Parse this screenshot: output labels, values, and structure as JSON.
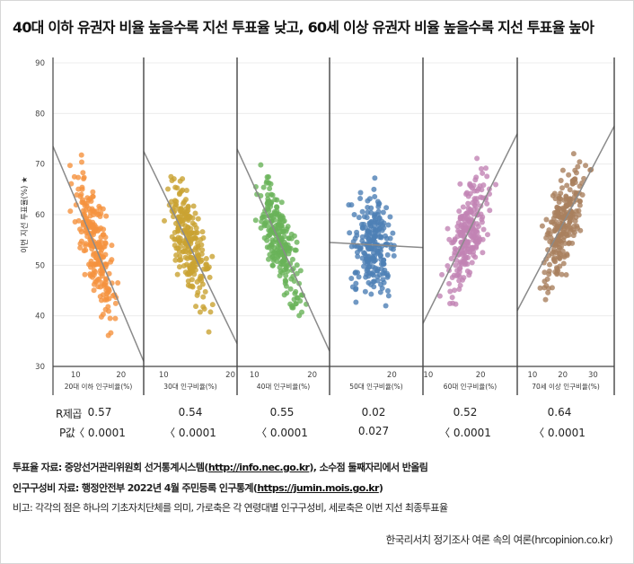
{
  "title": "40대 이하 유권자 비율 높을수록 지선 투표율 낮고, 60세 이상 유권자 비율 높을수록 지선 투표율 높아",
  "chart_data": {
    "type": "scatter",
    "ylabel": "이번 지선 투표율(%) ★",
    "ylim": [
      30,
      90
    ],
    "yticks": [
      30,
      40,
      50,
      60,
      70,
      80,
      90
    ],
    "panels": [
      {
        "xlabel": "20대 이하 인구비율(%)",
        "xlim": [
          5,
          25
        ],
        "xticks": [
          10,
          20
        ],
        "color": "#f5923e",
        "trend": [
          [
            5,
            73.5
          ],
          [
            25,
            31
          ]
        ],
        "r2": "0.57",
        "p": "〈 0.0001"
      },
      {
        "xlabel": "30대 인구비율(%)",
        "xlim": [
          7,
          21
        ],
        "xticks": [
          10,
          20
        ],
        "color": "#c9a232",
        "trend": [
          [
            7,
            72.5
          ],
          [
            21,
            34.5
          ]
        ],
        "r2": "0.54",
        "p": "〈 0.0001"
      },
      {
        "xlabel": "40대 인구비율(%)",
        "xlim": [
          7,
          23
        ],
        "xticks": [
          10,
          20
        ],
        "color": "#69b359",
        "trend": [
          [
            7,
            73
          ],
          [
            23,
            33
          ]
        ],
        "r2": "0.55",
        "p": "〈 0.0001"
      },
      {
        "xlabel": "50대 인구비율(%)",
        "xlim": [
          10,
          25
        ],
        "xticks": [
          20
        ],
        "color": "#4d7fb5",
        "trend": [
          [
            10,
            54.5
          ],
          [
            25,
            53.5
          ]
        ],
        "r2": "0.02",
        "p": "0.027"
      },
      {
        "xlabel": "60대 인구비율(%)",
        "xlim": [
          9,
          27
        ],
        "xticks": [
          10,
          20
        ],
        "color": "#c283b4",
        "trend": [
          [
            9,
            38.5
          ],
          [
            27,
            76
          ]
        ],
        "r2": "0.52",
        "p": "〈 0.0001"
      },
      {
        "xlabel": "70세 이상 인구비율(%)",
        "xlim": [
          5,
          37
        ],
        "xticks": [
          10,
          20,
          30
        ],
        "color": "#a97f5e",
        "trend": [
          [
            5,
            41
          ],
          [
            37,
            77.5
          ]
        ],
        "r2": "0.64",
        "p": "〈 0.0001"
      }
    ]
  },
  "stats": {
    "r2_label": "R제곱",
    "p_label": "P값"
  },
  "notes": {
    "vote_prefix": "투표율 자료: ",
    "vote_source": "중앙선거관리위원회 선거통계시스템(",
    "vote_link": "http://info.nec.go.kr",
    "vote_suffix": "), 소수점 둘째자리에서 반올림",
    "pop_prefix": "인구구성비 자료: ",
    "pop_source": "행정안전부 2022년 4월 주민등록 인구통계(",
    "pop_link": "https://jumin.mois.go.kr",
    "pop_suffix": ")",
    "remark": "비고: 각각의 점은 하나의 기초자치단체를 의미, 가로축은 각 연령대별 인구구성비, 세로축은 이번 지선 최종투표율"
  },
  "credit": "한국리서치 정기조사 여론 속의 여론(hrcopinion.co.kr)"
}
